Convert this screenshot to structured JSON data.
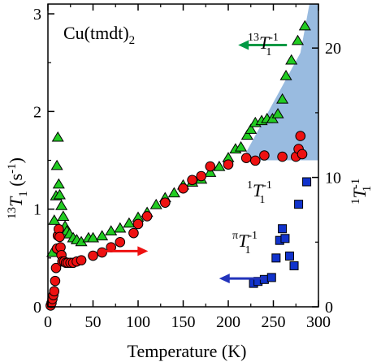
{
  "chart_data": {
    "type": "scatter",
    "title": "Cu(tmdt)",
    "title_subscript": "2",
    "xlabel": "Temperature (K)",
    "ylabel_left": {
      "sup": "13",
      "main": "T",
      "sub": "1",
      "tail": " (s",
      "tailsup": "-1",
      "close": ")"
    },
    "ylabel_right": {
      "sup": "1",
      "main": "T",
      "sub": "1",
      "tailsup": "-1"
    },
    "xlim": [
      0,
      300
    ],
    "ylim_left": [
      0,
      3.1
    ],
    "ylim_right": [
      0,
      23.4
    ],
    "x_ticks": [
      0,
      50,
      100,
      150,
      200,
      250,
      300
    ],
    "y_ticks_left": [
      0,
      1,
      2,
      3
    ],
    "y_ticks_right": [
      0,
      10,
      20
    ],
    "grid": false,
    "series": [
      {
        "name": "13T1-1",
        "axis": "left",
        "marker": "triangle",
        "color": "#22cc22",
        "points": [
          [
            5,
            0.55
          ],
          [
            7,
            0.88
          ],
          [
            9,
            1.13
          ],
          [
            10,
            1.44
          ],
          [
            11,
            1.73
          ],
          [
            12,
            1.25
          ],
          [
            13,
            1.14
          ],
          [
            15,
            1.03
          ],
          [
            17,
            0.92
          ],
          [
            19,
            0.82
          ],
          [
            21,
            0.77
          ],
          [
            24,
            0.74
          ],
          [
            28,
            0.7
          ],
          [
            32,
            0.68
          ],
          [
            37,
            0.66
          ],
          [
            45,
            0.7
          ],
          [
            50,
            0.7
          ],
          [
            60,
            0.72
          ],
          [
            70,
            0.77
          ],
          [
            80,
            0.8
          ],
          [
            90,
            0.85
          ],
          [
            100,
            0.91
          ],
          [
            110,
            0.96
          ],
          [
            120,
            1.04
          ],
          [
            130,
            1.11
          ],
          [
            140,
            1.16
          ],
          [
            150,
            1.24
          ],
          [
            160,
            1.27
          ],
          [
            170,
            1.3
          ],
          [
            180,
            1.37
          ],
          [
            190,
            1.43
          ],
          [
            200,
            1.52
          ],
          [
            208,
            1.61
          ],
          [
            214,
            1.63
          ],
          [
            221,
            1.75
          ],
          [
            225,
            1.81
          ],
          [
            230,
            1.88
          ],
          [
            237,
            1.9
          ],
          [
            243,
            1.92
          ],
          [
            249,
            1.92
          ],
          [
            255,
            1.97
          ],
          [
            260,
            2.12
          ],
          [
            264,
            2.36
          ],
          [
            270,
            2.52
          ],
          [
            277,
            2.72
          ],
          [
            285,
            2.87
          ]
        ]
      },
      {
        "name": "1T1-1",
        "axis": "right",
        "marker": "circle",
        "color": "#ee1111",
        "points": [
          [
            3,
            0.1
          ],
          [
            4,
            0.3
          ],
          [
            5,
            0.6
          ],
          [
            6,
            0.9
          ],
          [
            7,
            1.2
          ],
          [
            8,
            2.0
          ],
          [
            9,
            3.0
          ],
          [
            10,
            4.5
          ],
          [
            11,
            5.5
          ],
          [
            12,
            6.0
          ],
          [
            13,
            5.4
          ],
          [
            14,
            4.6
          ],
          [
            15,
            4.0
          ],
          [
            16,
            3.5
          ],
          [
            18,
            3.5
          ],
          [
            20,
            3.4
          ],
          [
            22,
            3.4
          ],
          [
            25,
            3.4
          ],
          [
            28,
            3.4
          ],
          [
            32,
            3.5
          ],
          [
            37,
            3.6
          ],
          [
            50,
            3.95
          ],
          [
            60,
            4.2
          ],
          [
            70,
            4.6
          ],
          [
            80,
            5.0
          ],
          [
            95,
            5.7
          ],
          [
            100,
            6.4
          ],
          [
            110,
            7.0
          ],
          [
            130,
            8.05
          ],
          [
            150,
            9.15
          ],
          [
            160,
            9.8
          ],
          [
            170,
            10.1
          ],
          [
            180,
            10.85
          ],
          [
            200,
            11.0
          ],
          [
            220,
            11.5
          ],
          [
            230,
            11.3
          ],
          [
            240,
            11.7
          ],
          [
            260,
            11.6
          ],
          [
            275,
            11.6
          ],
          [
            278,
            12.2
          ],
          [
            280,
            13.2
          ],
          [
            282,
            11.8
          ]
        ]
      },
      {
        "name": "πT1-1",
        "axis": "left",
        "marker": "square",
        "color": "#1133cc",
        "points": [
          [
            228,
            0.24
          ],
          [
            233,
            0.26
          ],
          [
            240,
            0.28
          ],
          [
            248,
            0.3
          ],
          [
            253,
            0.5
          ],
          [
            257,
            0.68
          ],
          [
            260,
            0.8
          ],
          [
            263,
            0.7
          ],
          [
            268,
            0.52
          ],
          [
            273,
            0.42
          ],
          [
            278,
            1.05
          ],
          [
            287,
            1.28
          ]
        ]
      }
    ],
    "annotations": [
      {
        "sup": "13",
        "main": "T",
        "sub": "1",
        "tailsup": "-1",
        "color": "#000000"
      },
      {
        "sup": "1",
        "main": "T",
        "sub": "1",
        "tailsup": "-1",
        "color": "#ee1111"
      },
      {
        "sup": "π",
        "main": "T",
        "sub": "1",
        "tailsup": "-1",
        "color": "#1133cc"
      }
    ],
    "arrows": [
      {
        "for": "13T1-1",
        "direction": "left",
        "color": "#009944"
      },
      {
        "for": "1T1-1",
        "direction": "right",
        "color": "#ee1111"
      },
      {
        "for": "πT1-1",
        "direction": "left",
        "color": "#2233bb"
      }
    ],
    "shaded_region": {
      "color": "#99bbe0",
      "upper_left": [
        [
          215,
          1.5
        ],
        [
          280,
          2.6
        ],
        [
          290,
          3.1
        ]
      ]
    }
  }
}
